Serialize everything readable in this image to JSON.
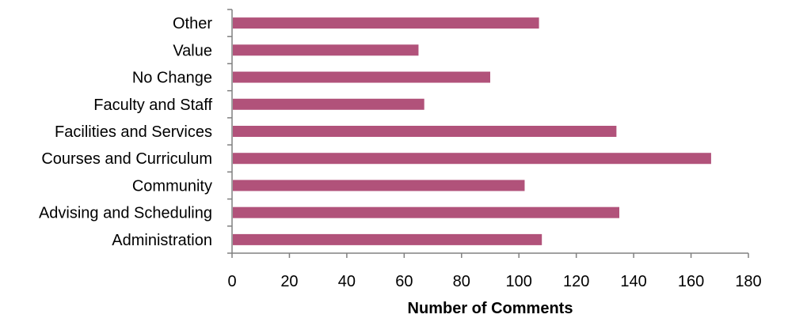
{
  "chart_data": {
    "type": "bar",
    "orientation": "horizontal",
    "categories": [
      "Administration",
      "Advising and Scheduling",
      "Community",
      "Courses and Curriculum",
      "Facilities and Services",
      "Faculty and Staff",
      "No Change",
      "Value",
      "Other"
    ],
    "values": [
      108,
      135,
      102,
      167,
      134,
      67,
      90,
      65,
      107
    ],
    "xlabel": "Number of Comments",
    "ylabel": "",
    "xlim": [
      0,
      180
    ],
    "xticks": [
      "0",
      "20",
      "40",
      "60",
      "80",
      "100",
      "120",
      "140",
      "160",
      "180"
    ],
    "grid": false,
    "legend": "none",
    "bar_color": "#b1527a"
  }
}
